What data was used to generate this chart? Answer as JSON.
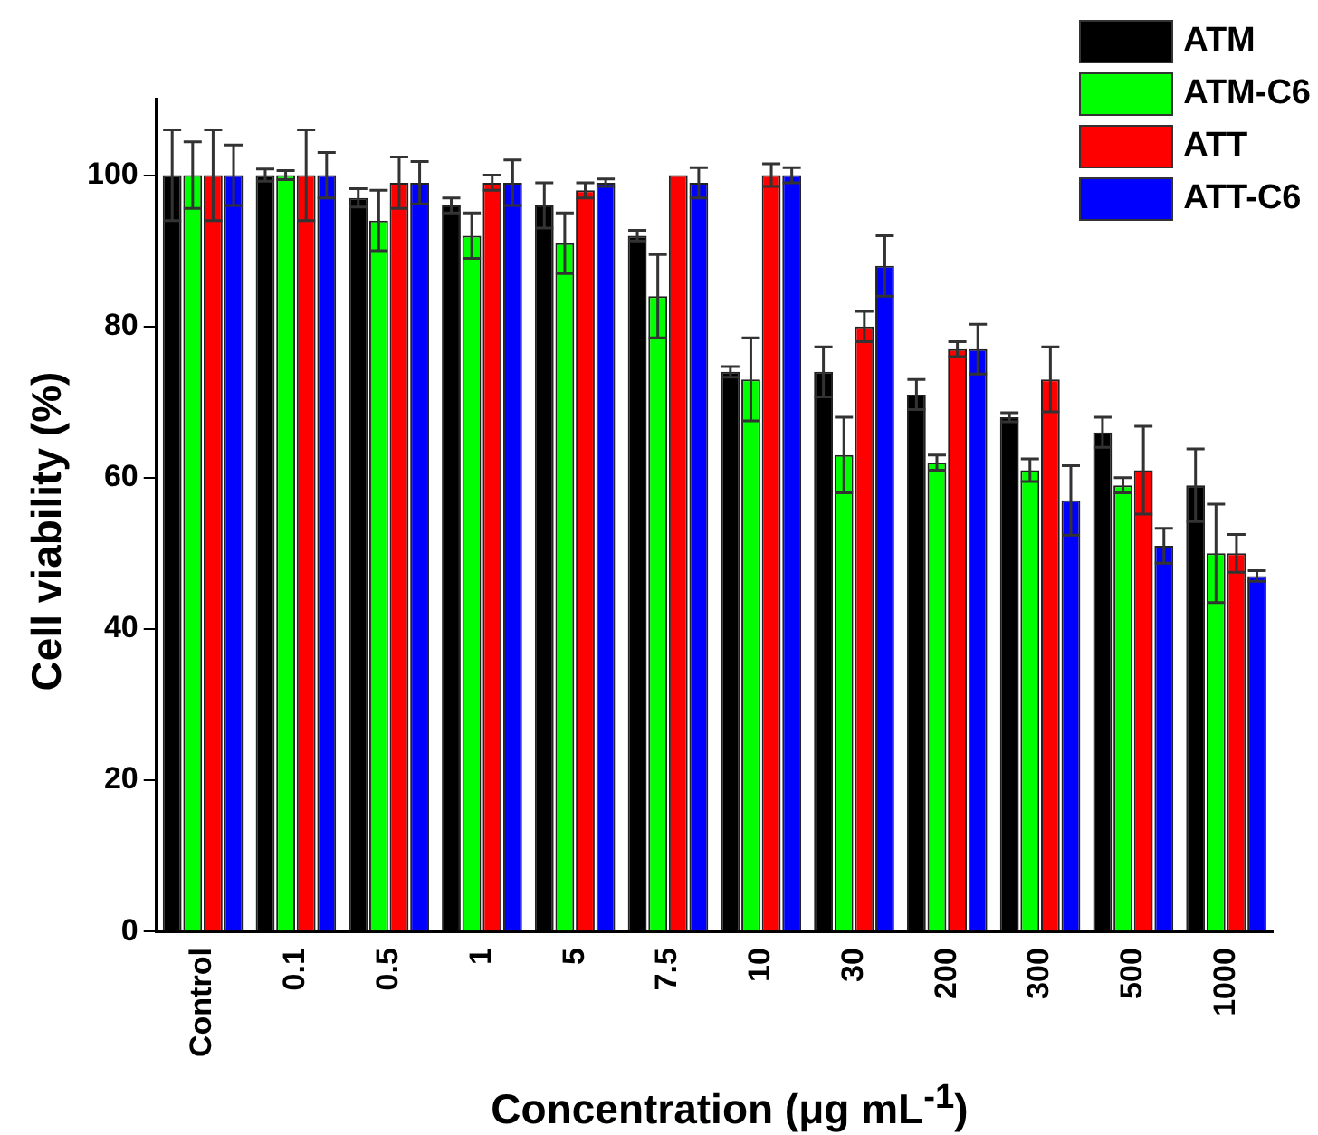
{
  "chart_data": {
    "type": "bar",
    "xlabel": "Concentration (μg mL$^{-1}$)",
    "ylabel": "Cell viability (%)",
    "categories": [
      "Control",
      "0.1",
      "0.5",
      "1",
      "5",
      "7.5",
      "10",
      "30",
      "200",
      "300",
      "500",
      "1000"
    ],
    "series": [
      {
        "name": "ATM",
        "color": "#000000",
        "values": [
          100,
          100,
          97,
          96,
          96,
          92,
          74,
          74,
          71,
          68,
          66,
          59
        ],
        "errors": [
          6,
          0.8,
          1.2,
          1,
          3,
          0.7,
          0.7,
          3.3,
          2,
          0.6,
          2,
          4.8
        ]
      },
      {
        "name": "ATM-C6",
        "color": "#00ff00",
        "values": [
          100,
          100,
          94,
          92,
          91,
          84,
          73,
          63,
          62,
          61,
          59,
          50
        ],
        "errors": [
          4.4,
          0.6,
          4,
          3,
          4,
          5.5,
          5.5,
          5,
          1,
          1.5,
          1,
          6.5
        ]
      },
      {
        "name": "ATT",
        "color": "#ff0000",
        "values": [
          100,
          100,
          99,
          99,
          98,
          100,
          100,
          80,
          77,
          73,
          61,
          50
        ],
        "errors": [
          6,
          6,
          3.4,
          1,
          1,
          null,
          1.5,
          2,
          1,
          4.3,
          5.8,
          2.5
        ]
      },
      {
        "name": "ATT-C6",
        "color": "#0000ff",
        "values": [
          100,
          100,
          99,
          99,
          99,
          99,
          100,
          88,
          77,
          57,
          51,
          47
        ],
        "errors": [
          4,
          3,
          2.8,
          3,
          0.5,
          2,
          1,
          4,
          3.3,
          4.6,
          2.3,
          0.7
        ]
      }
    ],
    "ylim": [
      0,
      110
    ],
    "yticks": [
      0,
      20,
      40,
      60,
      80,
      100
    ],
    "grid": false,
    "legend": "top right"
  }
}
